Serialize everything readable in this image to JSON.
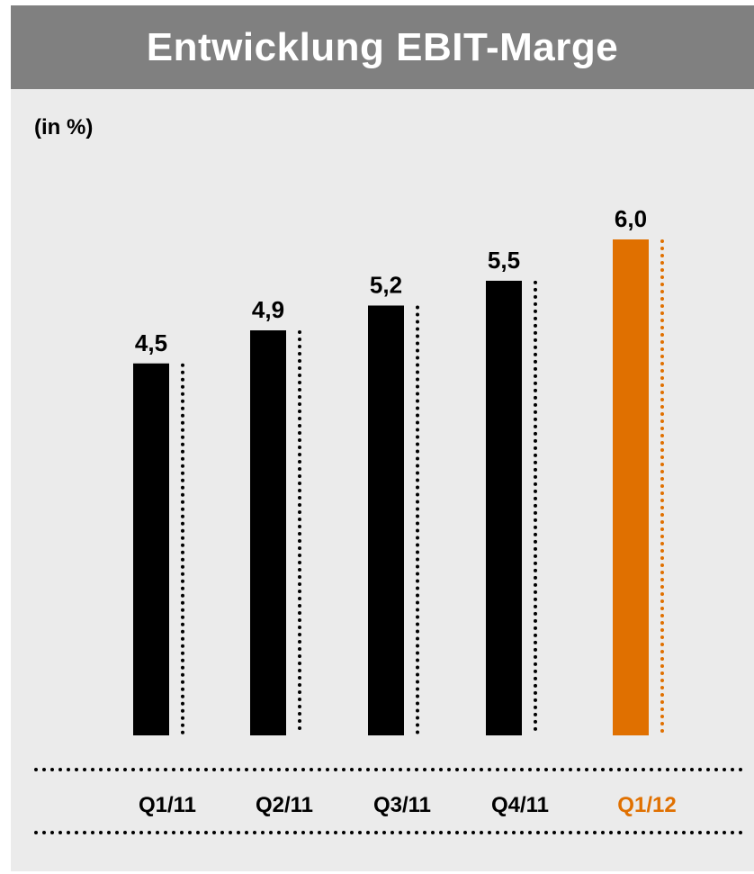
{
  "chart_data": {
    "type": "bar",
    "title": "Entwicklung EBIT-Marge",
    "unit_label": "(in %)",
    "categories": [
      "Q1/11",
      "Q2/11",
      "Q3/11",
      "Q4/11",
      "Q1/12"
    ],
    "values": [
      4.5,
      4.9,
      5.2,
      5.5,
      6.0
    ],
    "value_labels": [
      "4,5",
      "4,9",
      "5,2",
      "5,5",
      "6,0"
    ],
    "highlight_index": 4,
    "ylim": [
      0,
      6.0
    ],
    "grid": false,
    "colors": {
      "bar": "#000000",
      "highlight": "#e07000",
      "title_bg": "#808080",
      "panel_bg": "#ebebeb"
    }
  }
}
